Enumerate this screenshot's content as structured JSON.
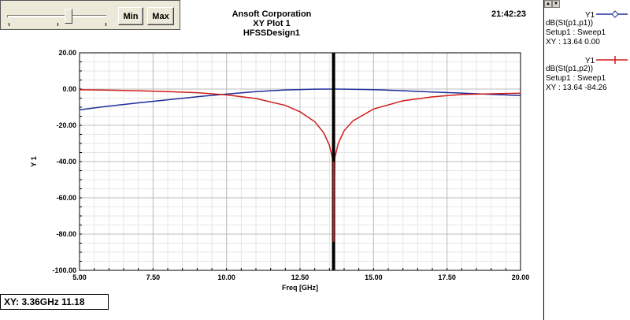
{
  "controls": {
    "min_label": "Min",
    "max_label": "Max",
    "slider_position": 0.6
  },
  "header": {
    "company": "Ansoft Corporation",
    "plot_name": "XY Plot 1",
    "design": "HFSSDesign1",
    "time": "21:42:23"
  },
  "status": {
    "readout": "XY: 3.36GHz 11.18"
  },
  "legend": [
    {
      "name": "Y1",
      "expr": "dB(St(p1,p1))",
      "setup": "Setup1 : Sweep1",
      "xy": "XY : 13.64 0.00",
      "color": "#1f2f9a",
      "marker": "diamond"
    },
    {
      "name": "Y1",
      "expr": "dB(St(p1,p2))",
      "setup": "Setup1 : Sweep1",
      "xy": "XY : 13.64 -84.26",
      "color": "#d01c1c",
      "marker": "plus"
    }
  ],
  "chart_data": {
    "type": "line",
    "xlabel": "Freq [GHz]",
    "ylabel": "Y 1",
    "xlim": [
      5,
      20
    ],
    "ylim": [
      -100,
      20
    ],
    "xticks": [
      "5.00",
      "7.50",
      "10.00",
      "12.50",
      "15.00",
      "17.50",
      "20.00"
    ],
    "yticks": [
      "20.00",
      "0.00",
      "-20.00",
      "-40.00",
      "-60.00",
      "-80.00",
      "-100.00"
    ],
    "grid": true,
    "marker_line_x": 13.64,
    "series": [
      {
        "name": "dB(St(p1,p1))",
        "color": "#1f2f9a",
        "x": [
          5.0,
          6.0,
          7.0,
          8.0,
          9.0,
          10.0,
          11.0,
          12.0,
          13.0,
          13.64,
          14.0,
          15.0,
          16.0,
          17.0,
          18.0,
          19.0,
          20.0
        ],
        "y": [
          -11.5,
          -9.4,
          -7.6,
          -5.9,
          -4.2,
          -2.8,
          -1.4,
          -0.5,
          -0.05,
          0.0,
          -0.05,
          -0.35,
          -0.9,
          -1.6,
          -2.2,
          -2.9,
          -3.6
        ]
      },
      {
        "name": "dB(St(p1,p2))",
        "color": "#d01c1c",
        "x": [
          5.0,
          6.0,
          7.0,
          8.0,
          9.0,
          10.0,
          11.0,
          12.0,
          12.5,
          13.0,
          13.3,
          13.5,
          13.6,
          13.64,
          13.68,
          13.8,
          14.0,
          14.3,
          15.0,
          16.0,
          17.0,
          18.0,
          19.0,
          20.0
        ],
        "y": [
          -0.4,
          -0.6,
          -0.9,
          -1.4,
          -2.0,
          -3.2,
          -5.2,
          -9.0,
          -12.5,
          -18.0,
          -24.0,
          -31.0,
          -38.0,
          -84.26,
          -38.0,
          -30.0,
          -23.0,
          -17.5,
          -11.0,
          -6.5,
          -4.3,
          -3.0,
          -2.6,
          -2.3
        ]
      }
    ]
  }
}
